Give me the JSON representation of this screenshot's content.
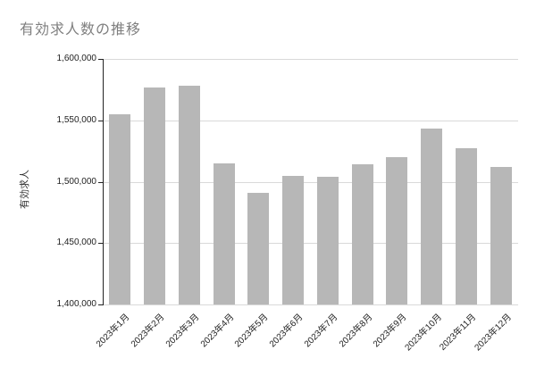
{
  "chart_data": {
    "type": "bar",
    "title": "有効求人数の推移",
    "xlabel": "",
    "ylabel": "有効求人",
    "categories": [
      "2023年1月",
      "2023年2月",
      "2023年3月",
      "2023年4月",
      "2023年5月",
      "2023年6月",
      "2023年7月",
      "2023年8月",
      "2023年9月",
      "2023年10月",
      "2023年11月",
      "2023年12月"
    ],
    "values": [
      1555000,
      1577000,
      1578000,
      1515000,
      1491000,
      1505000,
      1504000,
      1514000,
      1520000,
      1543000,
      1527000,
      1512000
    ],
    "ylim": [
      1400000,
      1600000
    ],
    "yticks": [
      1400000,
      1450000,
      1500000,
      1550000,
      1600000
    ],
    "ytick_labels": [
      "1,400,000",
      "1,450,000",
      "1,500,000",
      "1,550,000",
      "1,600,000"
    ],
    "grid": true,
    "legend_position": "none",
    "colors": {
      "bar": "#b7b7b7",
      "gridline": "#d9d9d9",
      "axis": "#222222",
      "tick_text": "#222222",
      "title_text": "#7f7f7f"
    }
  }
}
